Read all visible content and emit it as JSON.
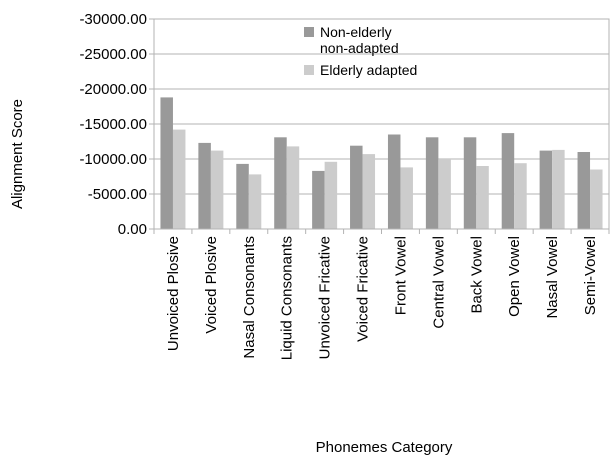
{
  "chart_data": {
    "type": "bar",
    "title": "",
    "xlabel": "Phonemes Category",
    "ylabel": "Alignment Score",
    "categories": [
      "Unvoiced Plosive",
      "Voiced Plosive",
      "Nasal Consonants",
      "Liquid Consonants",
      "Unvoiced Fricative",
      "Voiced Fricative",
      "Front Vowel",
      "Central Vowel",
      "Back Vowel",
      "Open Vowel",
      "Nasal Vowel",
      "Semi-Vowel"
    ],
    "series": [
      {
        "name": "Non-elderly non-adapted",
        "color": "#999999",
        "values": [
          -18800,
          -12300,
          -9300,
          -13100,
          -8300,
          -11900,
          -13500,
          -13100,
          -13100,
          -13700,
          -11200,
          -11000
        ]
      },
      {
        "name": "Elderly adapted",
        "color": "#cccccc",
        "values": [
          -14200,
          -11200,
          -7800,
          -11800,
          -9600,
          -10700,
          -8800,
          -10000,
          -9000,
          -9400,
          -11300,
          -8500
        ]
      }
    ],
    "y_ticks": [
      "-30000.00",
      "-25000.00",
      "-20000.00",
      "-15000.00",
      "-10000.00",
      "-5000.00",
      "0.00"
    ],
    "ylim": [
      0,
      -30000
    ],
    "y_axis_inverted": true,
    "grid": true,
    "legend_position": "top-center"
  }
}
